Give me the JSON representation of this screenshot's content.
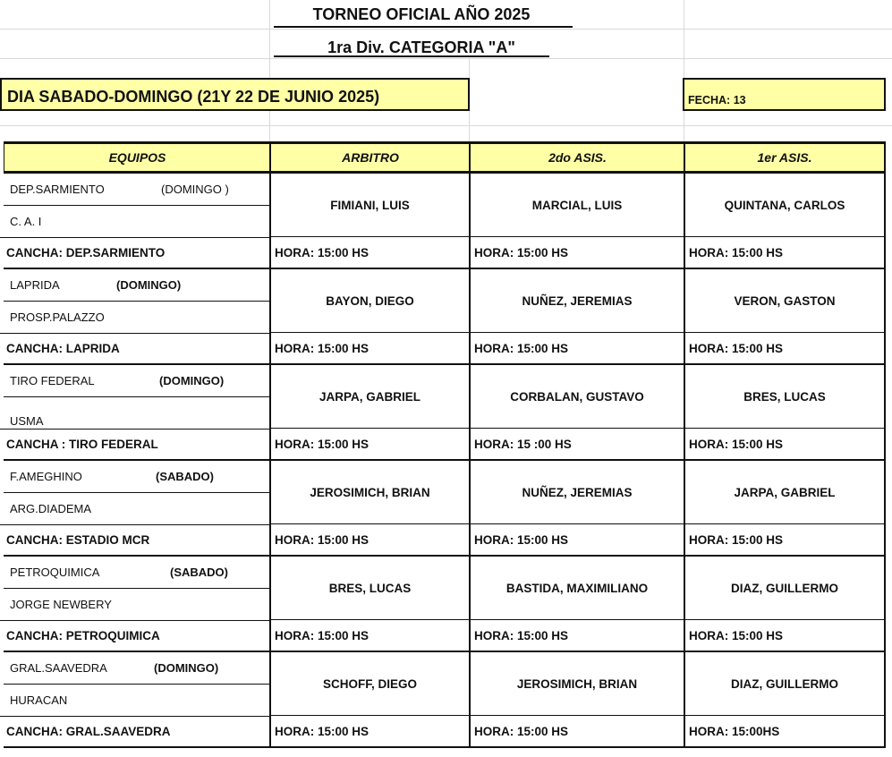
{
  "title": "TORNEO OFICIAL  AÑO 2025",
  "subtitle": "1ra Div. CATEGORIA \"A\"",
  "dia": "DIA SABADO-DOMINGO (21Y 22 DE JUNIO 2025)",
  "fecha": "FECHA: 13",
  "headers": {
    "equipos": "EQUIPOS",
    "arbitro": "ARBITRO",
    "asis2": "2do ASIS.",
    "asis1": "1er ASIS."
  },
  "colors": {
    "highlight": "#ffffa6",
    "border": "#111111"
  },
  "matches": [
    {
      "team1": "DEP.SARMIENTO",
      "day": "(DOMINGO )",
      "day_bold": false,
      "team2": "C.  A.  I",
      "arbitro": "FIMIANI, LUIS",
      "asis2": "MARCIAL, LUIS",
      "asis1": "QUINTANA, CARLOS",
      "cancha": "CANCHA: DEP.SARMIENTO",
      "hora_arbitro": "HORA: 15:00 HS",
      "hora_asis2": "HORA: 15:00 HS",
      "hora_asis1": "HORA: 15:00 HS"
    },
    {
      "team1": "LAPRIDA",
      "day": "(DOMINGO)",
      "day_bold": true,
      "team2": "PROSP.PALAZZO",
      "arbitro": "BAYON, DIEGO",
      "asis2": "NUÑEZ, JEREMIAS",
      "asis1": "VERON, GASTON",
      "cancha": "CANCHA: LAPRIDA",
      "hora_arbitro": "HORA: 15:00 HS",
      "hora_asis2": "HORA: 15:00 HS",
      "hora_asis1": "HORA: 15:00 HS"
    },
    {
      "team1": "TIRO FEDERAL",
      "day": "(DOMINGO)",
      "day_bold": true,
      "team2": "USMA",
      "arbitro": "JARPA, GABRIEL",
      "asis2": "CORBALAN, GUSTAVO",
      "asis1": "BRES, LUCAS",
      "cancha": "CANCHA : TIRO FEDERAL",
      "hora_arbitro": "HORA: 15:00 HS",
      "hora_asis2": "HORA: 15 :00 HS",
      "hora_asis1": "HORA: 15:00 HS"
    },
    {
      "team1": "F.AMEGHINO",
      "day": "(SABADO)",
      "day_bold": true,
      "team2": "ARG.DIADEMA",
      "arbitro": "JEROSIMICH, BRIAN",
      "asis2": "NUÑEZ, JEREMIAS",
      "asis1": "JARPA, GABRIEL",
      "cancha": "CANCHA: ESTADIO MCR",
      "hora_arbitro": "HORA: 15:00 HS",
      "hora_asis2": "HORA: 15:00 HS",
      "hora_asis1": "HORA: 15:00 HS"
    },
    {
      "team1": "PETROQUIMICA",
      "day": "(SABADO)",
      "day_bold": true,
      "team2": "JORGE NEWBERY",
      "arbitro": "BRES, LUCAS",
      "asis2": "BASTIDA, MAXIMILIANO",
      "asis1": "DIAZ, GUILLERMO",
      "cancha": "CANCHA: PETROQUIMICA",
      "hora_arbitro": "HORA: 15:00 HS",
      "hora_asis2": "HORA: 15:00 HS",
      "hora_asis1": "HORA: 15:00 HS"
    },
    {
      "team1": "GRAL.SAAVEDRA",
      "day": "(DOMINGO)",
      "day_bold": true,
      "team2": "HURACAN",
      "arbitro": "SCHOFF, DIEGO",
      "asis2": "JEROSIMICH, BRIAN",
      "asis1": "DIAZ, GUILLERMO",
      "cancha": "CANCHA: GRAL.SAAVEDRA",
      "hora_arbitro": "HORA: 15:00 HS",
      "hora_asis2": "HORA: 15:00 HS",
      "hora_asis1": "HORA: 15:00HS"
    }
  ]
}
